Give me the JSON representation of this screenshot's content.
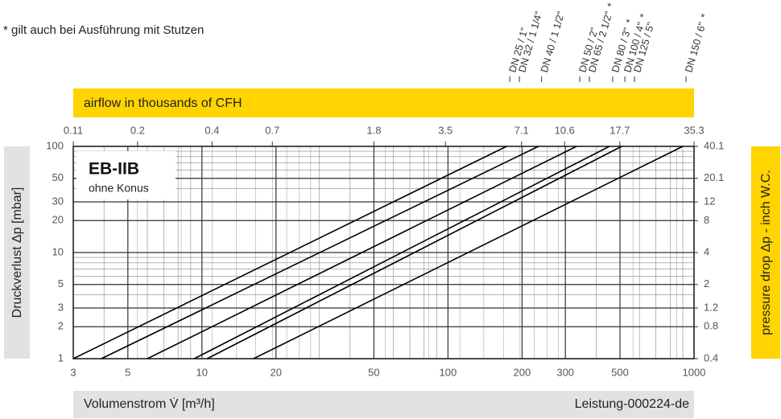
{
  "chart_data": {
    "type": "line",
    "footnote": "* gilt auch bei Ausführung mit Stutzen",
    "note_marker": "*",
    "top_band": "airflow in thousands of CFH",
    "title": "EB-IIB",
    "subtitle": "ohne Konus",
    "x_label": "Volumenstrom V̇ [m³/h]",
    "document_id": "Leistung-000224-de",
    "y_label": "Druckverlust Δp [mbar]",
    "y2_label": "pressure  drop Δp - inch W.C.",
    "log_scale": true,
    "grid": true,
    "xlim": [
      3,
      1000
    ],
    "xticks": [
      3,
      5,
      10,
      20,
      50,
      100,
      200,
      300,
      500,
      1000
    ],
    "ylim": [
      1,
      100
    ],
    "yticks": [
      1,
      2,
      3,
      5,
      10,
      20,
      30,
      50,
      100
    ],
    "x2lim": [
      0.11,
      35.3
    ],
    "x2ticks": [
      0.11,
      0.2,
      0.4,
      0.7,
      1.8,
      3.5,
      7.1,
      10.6,
      17.7,
      35.3
    ],
    "y2lim": [
      0.4,
      40.1
    ],
    "y2ticks": [
      0.4,
      0.8,
      1.2,
      2,
      4,
      8,
      12,
      20.1,
      40.1
    ],
    "series": [
      {
        "labels": [
          "DN 25 / 1\"",
          "DN 32 / 1 1/4\""
        ],
        "starred": [
          false,
          false
        ],
        "color": "#000000",
        "x": [
          3,
          173
        ],
        "values": [
          1,
          100
        ]
      },
      {
        "labels": [
          "DN 40 / 1 1/2\""
        ],
        "starred": [
          false
        ],
        "color": "#000000",
        "x": [
          3.9,
          233
        ],
        "values": [
          1,
          100
        ]
      },
      {
        "labels": [
          "DN 50 / 2\"",
          "DN 65 / 2 1/2\""
        ],
        "starred": [
          false,
          true
        ],
        "color": "#000000",
        "x": [
          6,
          333
        ],
        "values": [
          1,
          100
        ]
      },
      {
        "labels": [
          "DN 80 / 3\""
        ],
        "starred": [
          true
        ],
        "color": "#000000",
        "x": [
          9.3,
          453
        ],
        "values": [
          1,
          100
        ]
      },
      {
        "labels": [
          "DN 100 / 4\"",
          "DN 125 / 5\""
        ],
        "starred": [
          true,
          false
        ],
        "color": "#000000",
        "x": [
          10.5,
          508
        ],
        "values": [
          1,
          100
        ]
      },
      {
        "labels": [
          "DN 150 / 6\""
        ],
        "starred": [
          true
        ],
        "color": "#000000",
        "x": [
          16.2,
          900
        ],
        "values": [
          1,
          100
        ]
      }
    ]
  }
}
